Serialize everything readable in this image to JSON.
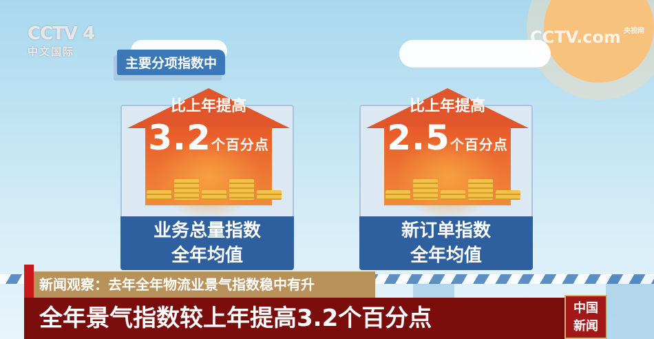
{
  "channel_logo": {
    "name": "CCTV 4",
    "subtitle": "中文国际"
  },
  "watermark": {
    "name": "CCTV.com",
    "subtitle": "央视网"
  },
  "section_tag": "主要分项指数中",
  "cards": [
    {
      "caption": "比上年提高",
      "value": "3.2",
      "unit": "个百分点",
      "label_line1": "业务总量指数",
      "label_line2": "全年均值"
    },
    {
      "caption": "比上年提高",
      "value": "2.5",
      "unit": "个百分点",
      "label_line1": "新订单指数",
      "label_line2": "全年均值"
    }
  ],
  "ticker": {
    "topic": "新闻观察：去年全年物流业景气指数稳中有升",
    "headline": "全年景气指数较上年提高3.2个百分点"
  },
  "program_logo": {
    "line1": "中国",
    "line2": "新闻"
  },
  "colors": {
    "arrow": "#e0552a",
    "label_bg": "#2e5f9e",
    "headline_bg": "#7a0c0c",
    "topic_bg": "#b8925a"
  }
}
